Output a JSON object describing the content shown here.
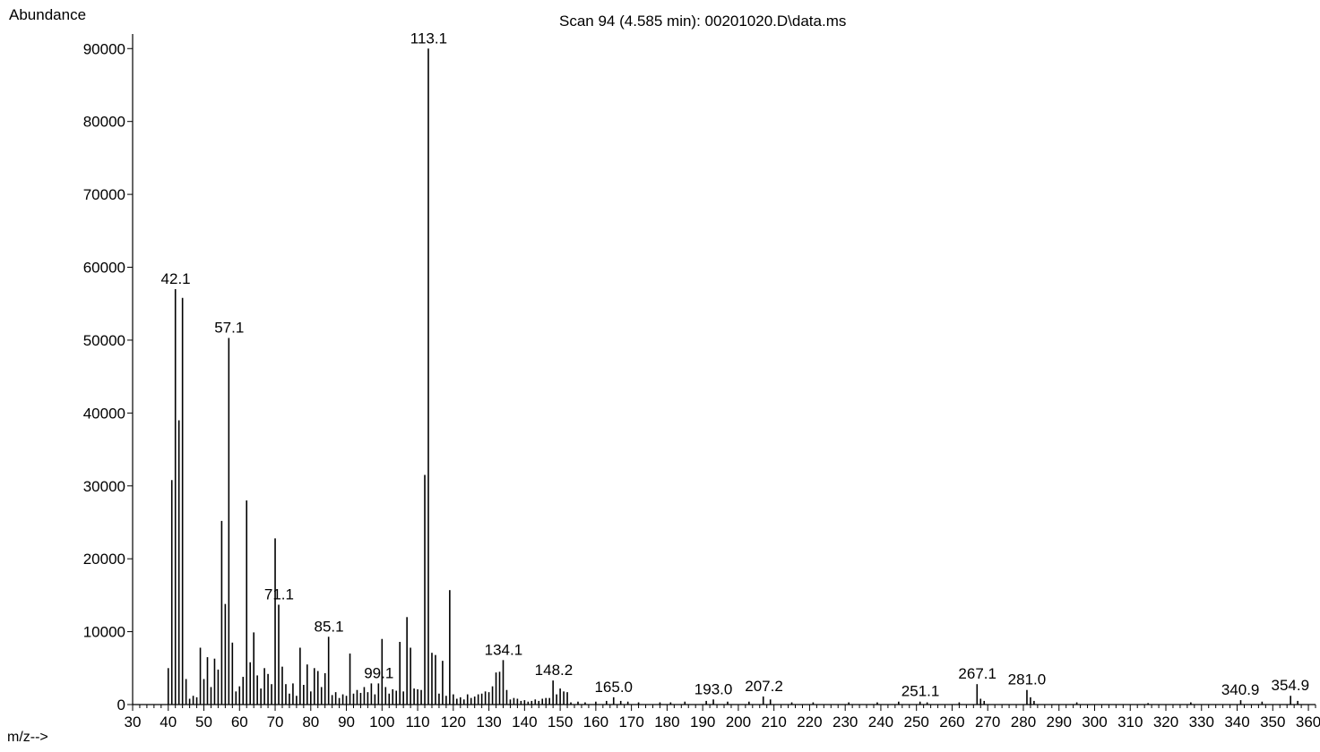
{
  "chart_data": {
    "type": "bar",
    "title": "Scan 94 (4.585 min): 00201020.D\\data.ms",
    "ylabel": "Abundance",
    "xlabel": "m/z-->",
    "xlim": [
      30,
      362
    ],
    "ylim": [
      0,
      92000
    ],
    "yticks": [
      0,
      10000,
      20000,
      30000,
      40000,
      50000,
      60000,
      70000,
      80000,
      90000
    ],
    "xticks": [
      30,
      40,
      50,
      60,
      70,
      80,
      90,
      100,
      110,
      120,
      130,
      140,
      150,
      160,
      170,
      180,
      190,
      200,
      210,
      220,
      230,
      240,
      250,
      260,
      270,
      280,
      290,
      300,
      310,
      320,
      330,
      340,
      350,
      360
    ],
    "peaks": [
      {
        "x": 40,
        "y": 5000
      },
      {
        "x": 41,
        "y": 30800
      },
      {
        "x": 42,
        "y": 57000
      },
      {
        "x": 43,
        "y": 39000
      },
      {
        "x": 44,
        "y": 55800
      },
      {
        "x": 45,
        "y": 3500
      },
      {
        "x": 46,
        "y": 800
      },
      {
        "x": 47,
        "y": 1200
      },
      {
        "x": 48,
        "y": 1000
      },
      {
        "x": 49,
        "y": 7800
      },
      {
        "x": 50,
        "y": 3500
      },
      {
        "x": 51,
        "y": 6500
      },
      {
        "x": 52,
        "y": 2400
      },
      {
        "x": 53,
        "y": 6300
      },
      {
        "x": 54,
        "y": 4800
      },
      {
        "x": 55,
        "y": 25200
      },
      {
        "x": 56,
        "y": 13800
      },
      {
        "x": 57,
        "y": 50300
      },
      {
        "x": 58,
        "y": 8500
      },
      {
        "x": 59,
        "y": 1800
      },
      {
        "x": 60,
        "y": 2500
      },
      {
        "x": 61,
        "y": 3800
      },
      {
        "x": 62,
        "y": 28000
      },
      {
        "x": 63,
        "y": 5800
      },
      {
        "x": 64,
        "y": 9900
      },
      {
        "x": 65,
        "y": 4000
      },
      {
        "x": 66,
        "y": 2200
      },
      {
        "x": 67,
        "y": 5000
      },
      {
        "x": 68,
        "y": 4200
      },
      {
        "x": 69,
        "y": 2800
      },
      {
        "x": 70,
        "y": 22800
      },
      {
        "x": 71,
        "y": 13700
      },
      {
        "x": 72,
        "y": 5200
      },
      {
        "x": 73,
        "y": 2800
      },
      {
        "x": 74,
        "y": 1500
      },
      {
        "x": 75,
        "y": 2900
      },
      {
        "x": 76,
        "y": 1200
      },
      {
        "x": 77,
        "y": 7800
      },
      {
        "x": 78,
        "y": 2700
      },
      {
        "x": 79,
        "y": 5500
      },
      {
        "x": 80,
        "y": 1800
      },
      {
        "x": 81,
        "y": 5000
      },
      {
        "x": 82,
        "y": 4600
      },
      {
        "x": 83,
        "y": 2400
      },
      {
        "x": 84,
        "y": 4300
      },
      {
        "x": 85,
        "y": 9300
      },
      {
        "x": 86,
        "y": 1300
      },
      {
        "x": 87,
        "y": 1700
      },
      {
        "x": 88,
        "y": 900
      },
      {
        "x": 89,
        "y": 1400
      },
      {
        "x": 90,
        "y": 1200
      },
      {
        "x": 91,
        "y": 7000
      },
      {
        "x": 92,
        "y": 1500
      },
      {
        "x": 93,
        "y": 2000
      },
      {
        "x": 94,
        "y": 1600
      },
      {
        "x": 95,
        "y": 2400
      },
      {
        "x": 96,
        "y": 1700
      },
      {
        "x": 97,
        "y": 2900
      },
      {
        "x": 98,
        "y": 1400
      },
      {
        "x": 99,
        "y": 2900
      },
      {
        "x": 100,
        "y": 9000
      },
      {
        "x": 101,
        "y": 2400
      },
      {
        "x": 102,
        "y": 1500
      },
      {
        "x": 103,
        "y": 2100
      },
      {
        "x": 104,
        "y": 1900
      },
      {
        "x": 105,
        "y": 8600
      },
      {
        "x": 106,
        "y": 1800
      },
      {
        "x": 107,
        "y": 12000
      },
      {
        "x": 108,
        "y": 7800
      },
      {
        "x": 109,
        "y": 2200
      },
      {
        "x": 110,
        "y": 2100
      },
      {
        "x": 111,
        "y": 2000
      },
      {
        "x": 112,
        "y": 31500
      },
      {
        "x": 113,
        "y": 90000
      },
      {
        "x": 114,
        "y": 7100
      },
      {
        "x": 115,
        "y": 6800
      },
      {
        "x": 116,
        "y": 1500
      },
      {
        "x": 117,
        "y": 6000
      },
      {
        "x": 118,
        "y": 1200
      },
      {
        "x": 119,
        "y": 15700
      },
      {
        "x": 120,
        "y": 1400
      },
      {
        "x": 121,
        "y": 800
      },
      {
        "x": 122,
        "y": 1000
      },
      {
        "x": 123,
        "y": 700
      },
      {
        "x": 124,
        "y": 1400
      },
      {
        "x": 125,
        "y": 900
      },
      {
        "x": 126,
        "y": 1100
      },
      {
        "x": 127,
        "y": 1400
      },
      {
        "x": 128,
        "y": 1500
      },
      {
        "x": 129,
        "y": 1800
      },
      {
        "x": 130,
        "y": 1700
      },
      {
        "x": 131,
        "y": 2500
      },
      {
        "x": 132,
        "y": 4400
      },
      {
        "x": 133,
        "y": 4500
      },
      {
        "x": 134,
        "y": 6100
      },
      {
        "x": 135,
        "y": 2000
      },
      {
        "x": 136,
        "y": 700
      },
      {
        "x": 137,
        "y": 900
      },
      {
        "x": 138,
        "y": 800
      },
      {
        "x": 139,
        "y": 500
      },
      {
        "x": 140,
        "y": 600
      },
      {
        "x": 141,
        "y": 400
      },
      {
        "x": 142,
        "y": 500
      },
      {
        "x": 143,
        "y": 700
      },
      {
        "x": 144,
        "y": 500
      },
      {
        "x": 145,
        "y": 800
      },
      {
        "x": 146,
        "y": 900
      },
      {
        "x": 147,
        "y": 900
      },
      {
        "x": 148,
        "y": 3300
      },
      {
        "x": 149,
        "y": 1400
      },
      {
        "x": 150,
        "y": 2200
      },
      {
        "x": 151,
        "y": 1800
      },
      {
        "x": 152,
        "y": 1700
      },
      {
        "x": 153,
        "y": 300
      },
      {
        "x": 155,
        "y": 400
      },
      {
        "x": 157,
        "y": 300
      },
      {
        "x": 160,
        "y": 400
      },
      {
        "x": 163,
        "y": 500
      },
      {
        "x": 165,
        "y": 1000
      },
      {
        "x": 167,
        "y": 500
      },
      {
        "x": 169,
        "y": 400
      },
      {
        "x": 172,
        "y": 300
      },
      {
        "x": 178,
        "y": 300
      },
      {
        "x": 181,
        "y": 300
      },
      {
        "x": 185,
        "y": 400
      },
      {
        "x": 191,
        "y": 500
      },
      {
        "x": 193,
        "y": 700
      },
      {
        "x": 197,
        "y": 400
      },
      {
        "x": 203,
        "y": 400
      },
      {
        "x": 207,
        "y": 1100
      },
      {
        "x": 209,
        "y": 700
      },
      {
        "x": 215,
        "y": 300
      },
      {
        "x": 221,
        "y": 300
      },
      {
        "x": 231,
        "y": 300
      },
      {
        "x": 239,
        "y": 300
      },
      {
        "x": 245,
        "y": 400
      },
      {
        "x": 251,
        "y": 400
      },
      {
        "x": 253,
        "y": 300
      },
      {
        "x": 262,
        "y": 300
      },
      {
        "x": 267,
        "y": 2800
      },
      {
        "x": 268,
        "y": 800
      },
      {
        "x": 269,
        "y": 500
      },
      {
        "x": 281,
        "y": 2000
      },
      {
        "x": 282,
        "y": 1000
      },
      {
        "x": 283,
        "y": 500
      },
      {
        "x": 295,
        "y": 300
      },
      {
        "x": 315,
        "y": 200
      },
      {
        "x": 327,
        "y": 300
      },
      {
        "x": 341,
        "y": 600
      },
      {
        "x": 347,
        "y": 400
      },
      {
        "x": 355,
        "y": 1200
      },
      {
        "x": 357,
        "y": 500
      }
    ],
    "peak_labels": [
      {
        "x": 42.1,
        "y": 57000,
        "text": "42.1"
      },
      {
        "x": 57.1,
        "y": 50300,
        "text": "57.1"
      },
      {
        "x": 71.1,
        "y": 13700,
        "text": "71.1"
      },
      {
        "x": 85.1,
        "y": 9300,
        "text": "85.1"
      },
      {
        "x": 99.1,
        "y": 2900,
        "text": "99.1"
      },
      {
        "x": 113.1,
        "y": 90000,
        "text": "113.1"
      },
      {
        "x": 134.1,
        "y": 6100,
        "text": "134.1"
      },
      {
        "x": 148.2,
        "y": 3300,
        "text": "148.2"
      },
      {
        "x": 165.0,
        "y": 1000,
        "text": "165.0"
      },
      {
        "x": 193.0,
        "y": 700,
        "text": "193.0"
      },
      {
        "x": 207.2,
        "y": 1100,
        "text": "207.2"
      },
      {
        "x": 251.1,
        "y": 400,
        "text": "251.1"
      },
      {
        "x": 267.1,
        "y": 2800,
        "text": "267.1"
      },
      {
        "x": 281.0,
        "y": 2000,
        "text": "281.0"
      },
      {
        "x": 340.9,
        "y": 600,
        "text": "340.9"
      },
      {
        "x": 354.9,
        "y": 1200,
        "text": "354.9"
      }
    ],
    "grid": false,
    "legend": "none"
  }
}
